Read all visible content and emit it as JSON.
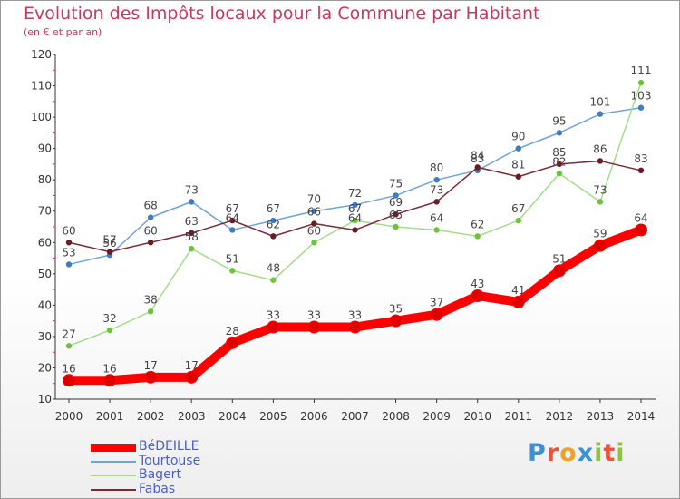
{
  "header": {
    "title": "Evolution des Impôts locaux pour la Commune par Habitant",
    "subtitle": "(en € et par an)"
  },
  "brand": {
    "letters": [
      "P",
      "r",
      "o",
      "x",
      "i",
      "t",
      "i"
    ],
    "colors": [
      "#3d8fd6",
      "#e8543c",
      "#f0a02c",
      "#3d8fd6",
      "#8cc43c",
      "#e8543c",
      "#8cc43c"
    ]
  },
  "chart_data": {
    "type": "line",
    "x": [
      2000,
      2001,
      2002,
      2003,
      2004,
      2005,
      2006,
      2007,
      2008,
      2009,
      2010,
      2011,
      2012,
      2013,
      2014
    ],
    "ylim": [
      10,
      120
    ],
    "yticks": [
      10,
      20,
      30,
      40,
      50,
      60,
      70,
      80,
      90,
      100,
      110,
      120
    ],
    "grid": false,
    "legend_position": "bottom-left",
    "series": [
      {
        "name": "Tourtouse",
        "color": "#6fa3d8",
        "dot_color": "#3f7cc4",
        "emphasis": false,
        "values": [
          53,
          56,
          68,
          73,
          64,
          67,
          70,
          72,
          75,
          80,
          83,
          90,
          95,
          101,
          103
        ],
        "labels": [
          "53",
          "56",
          "68",
          "73",
          "64",
          "67",
          "70",
          "72",
          "75",
          "80",
          "83",
          "90",
          "95",
          "101",
          "103"
        ]
      },
      {
        "name": "Bagert",
        "color": "#a4dc8c",
        "dot_color": "#6cc43c",
        "emphasis": false,
        "values": [
          27,
          32,
          38,
          58,
          51,
          48,
          60,
          67,
          65,
          64,
          62,
          67,
          82,
          73,
          111
        ],
        "labels": [
          "27",
          "32",
          "38",
          "58",
          "51",
          "48",
          "60",
          "67",
          "65",
          "64",
          "62",
          "67",
          "82",
          "73",
          "111"
        ]
      },
      {
        "name": "Fabas",
        "color": "#7a2a34",
        "dot_color": "#6a1c24",
        "emphasis": false,
        "values": [
          60,
          57,
          60,
          63,
          67,
          62,
          66,
          64,
          69,
          73,
          84,
          81,
          85,
          86,
          83
        ],
        "labels": [
          "60",
          "57",
          "60",
          "63",
          "67",
          "62",
          "66",
          "64",
          "69",
          "73",
          "84",
          "81",
          "85",
          "86",
          "83"
        ]
      },
      {
        "name": "BéDEILLE",
        "color": "#ff0000",
        "dot_color": "#e00000",
        "emphasis": true,
        "values": [
          16,
          16,
          17,
          17,
          28,
          33,
          33,
          33,
          35,
          37,
          43,
          41,
          51,
          59,
          64
        ],
        "labels": [
          "16",
          "16",
          "17",
          "17",
          "28",
          "33",
          "33",
          "33",
          "35",
          "37",
          "43",
          "41",
          "51",
          "59",
          "64"
        ]
      }
    ],
    "legend_order": [
      "BéDEILLE",
      "Tourtouse",
      "Bagert",
      "Fabas"
    ]
  }
}
